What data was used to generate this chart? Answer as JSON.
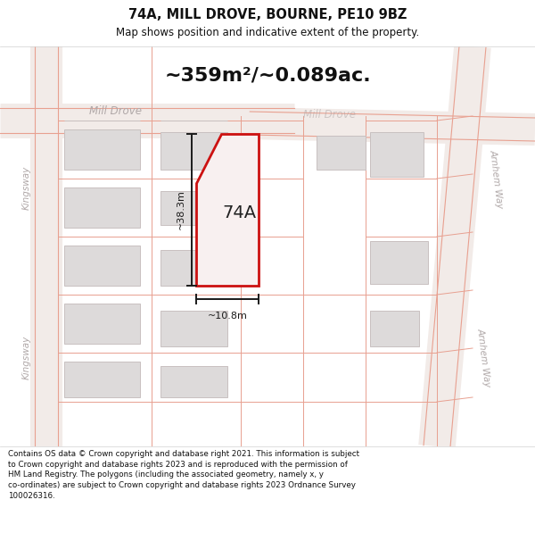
{
  "title": "74A, MILL DROVE, BOURNE, PE10 9BZ",
  "subtitle": "Map shows position and indicative extent of the property.",
  "area_label": "~359m²/~0.089ac.",
  "property_label": "74A",
  "dim_height": "~38.3m",
  "dim_width": "~10.8m",
  "footer": "Contains OS data © Crown copyright and database right 2021. This information is subject\nto Crown copyright and database rights 2023 and is reproduced with the permission of\nHM Land Registry. The polygons (including the associated geometry, namely x, y\nco-ordinates) are subject to Crown copyright and database rights 2023 Ordnance Survey\n100026316.",
  "map_bg": "#f7f5f2",
  "road_fill": "#f2ebe8",
  "road_stroke": "#e8a090",
  "building_fill": "#dddada",
  "building_stroke": "#c8c0c0",
  "red_plot_fill": "#f8f0f0",
  "red_plot_color": "#cc1111",
  "dim_line_color": "#1a1a1a",
  "street_text_color": "#b0a8a8",
  "title_color": "#111111",
  "footer_color": "#111111",
  "white": "#ffffff"
}
